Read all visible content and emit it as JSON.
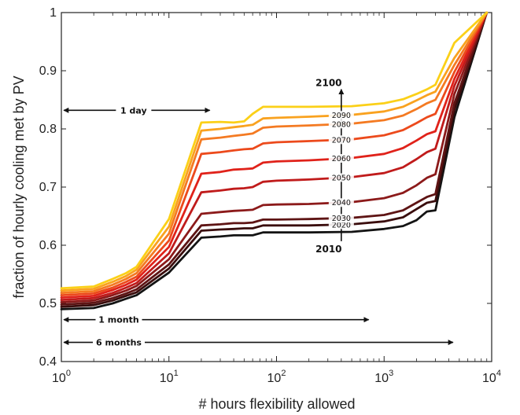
{
  "chart_data": {
    "type": "line",
    "xscale": "log",
    "xlim": [
      1,
      10000
    ],
    "ylim": [
      0.4,
      1.0
    ],
    "xlabel": "# hours flexibility allowed",
    "ylabel": "fraction of hourly cooling met by PV",
    "ytick_labels": [
      "0.4",
      "0.5",
      "0.6",
      "0.7",
      "0.8",
      "0.9",
      "1"
    ],
    "xtick_labels": [
      {
        "base": "10",
        "exp": "0"
      },
      {
        "base": "10",
        "exp": "1"
      },
      {
        "base": "10",
        "exp": "2"
      },
      {
        "base": "10",
        "exp": "3"
      },
      {
        "base": "10",
        "exp": "4"
      }
    ],
    "x": [
      1,
      2,
      3,
      4,
      5,
      10,
      20,
      30,
      40,
      50,
      60,
      75,
      100,
      200,
      500,
      1000,
      1500,
      2000,
      2500,
      3000,
      4500,
      9000
    ],
    "series": [
      {
        "name": "2010",
        "color": "#141414",
        "values": [
          0.49,
          0.492,
          0.5,
          0.508,
          0.514,
          0.553,
          0.613,
          0.615,
          0.617,
          0.617,
          0.617,
          0.622,
          0.622,
          0.622,
          0.623,
          0.628,
          0.633,
          0.643,
          0.658,
          0.66,
          0.82,
          1.0
        ]
      },
      {
        "name": "2020",
        "color": "#3a0d0d",
        "values": [
          0.494,
          0.497,
          0.505,
          0.513,
          0.519,
          0.56,
          0.625,
          0.627,
          0.628,
          0.629,
          0.629,
          0.634,
          0.634,
          0.634,
          0.636,
          0.641,
          0.648,
          0.662,
          0.673,
          0.676,
          0.833,
          1.0
        ]
      },
      {
        "name": "2030",
        "color": "#5e1414",
        "values": [
          0.498,
          0.501,
          0.509,
          0.517,
          0.524,
          0.567,
          0.634,
          0.636,
          0.638,
          0.638,
          0.639,
          0.644,
          0.644,
          0.645,
          0.647,
          0.652,
          0.66,
          0.673,
          0.683,
          0.688,
          0.844,
          1.0
        ]
      },
      {
        "name": "2040",
        "color": "#8c1a1a",
        "values": [
          0.502,
          0.505,
          0.514,
          0.522,
          0.53,
          0.576,
          0.654,
          0.657,
          0.659,
          0.66,
          0.661,
          0.669,
          0.67,
          0.671,
          0.674,
          0.681,
          0.69,
          0.703,
          0.716,
          0.722,
          0.86,
          1.0
        ]
      },
      {
        "name": "2050",
        "color": "#c01b1b",
        "values": [
          0.506,
          0.509,
          0.518,
          0.527,
          0.535,
          0.586,
          0.691,
          0.694,
          0.697,
          0.698,
          0.7,
          0.709,
          0.711,
          0.713,
          0.717,
          0.724,
          0.734,
          0.748,
          0.76,
          0.766,
          0.874,
          1.0
        ]
      },
      {
        "name": "2060",
        "color": "#e0221a",
        "values": [
          0.51,
          0.513,
          0.523,
          0.532,
          0.541,
          0.597,
          0.723,
          0.726,
          0.73,
          0.731,
          0.732,
          0.742,
          0.744,
          0.746,
          0.75,
          0.757,
          0.767,
          0.78,
          0.791,
          0.796,
          0.886,
          1.0
        ]
      },
      {
        "name": "2070",
        "color": "#ec4a1c",
        "values": [
          0.514,
          0.517,
          0.527,
          0.537,
          0.546,
          0.608,
          0.757,
          0.76,
          0.763,
          0.765,
          0.766,
          0.775,
          0.777,
          0.779,
          0.782,
          0.789,
          0.798,
          0.81,
          0.82,
          0.826,
          0.898,
          1.0
        ]
      },
      {
        "name": "2080",
        "color": "#f47a22",
        "values": [
          0.518,
          0.521,
          0.532,
          0.542,
          0.552,
          0.62,
          0.782,
          0.785,
          0.788,
          0.79,
          0.792,
          0.802,
          0.804,
          0.806,
          0.809,
          0.815,
          0.823,
          0.834,
          0.844,
          0.85,
          0.91,
          1.0
        ]
      },
      {
        "name": "2090",
        "color": "#f9a21f",
        "values": [
          0.522,
          0.525,
          0.537,
          0.547,
          0.558,
          0.632,
          0.797,
          0.8,
          0.803,
          0.805,
          0.807,
          0.818,
          0.819,
          0.821,
          0.824,
          0.83,
          0.838,
          0.849,
          0.858,
          0.864,
          0.922,
          1.0
        ]
      },
      {
        "name": "2100",
        "color": "#fbd018",
        "values": [
          0.526,
          0.529,
          0.542,
          0.552,
          0.563,
          0.645,
          0.811,
          0.812,
          0.811,
          0.813,
          0.826,
          0.838,
          0.838,
          0.838,
          0.839,
          0.844,
          0.851,
          0.86,
          0.868,
          0.876,
          0.948,
          1.0
        ]
      }
    ],
    "series_labels": [
      "2100",
      "2090",
      "2080",
      "2070",
      "2060",
      "2050",
      "2040",
      "2030",
      "2020",
      "2010"
    ],
    "annotations": [
      {
        "text": "1 day",
        "x_start": 1,
        "x_end": 24,
        "y": 0.832
      },
      {
        "text": "1 month",
        "x_start": 1,
        "x_end": 720,
        "y": 0.472
      },
      {
        "text": "6 months",
        "x_start": 1,
        "x_end": 4380,
        "y": 0.433
      }
    ],
    "year_arrow": {
      "x": 400,
      "y_start": 0.607,
      "y_end": 0.868
    }
  }
}
